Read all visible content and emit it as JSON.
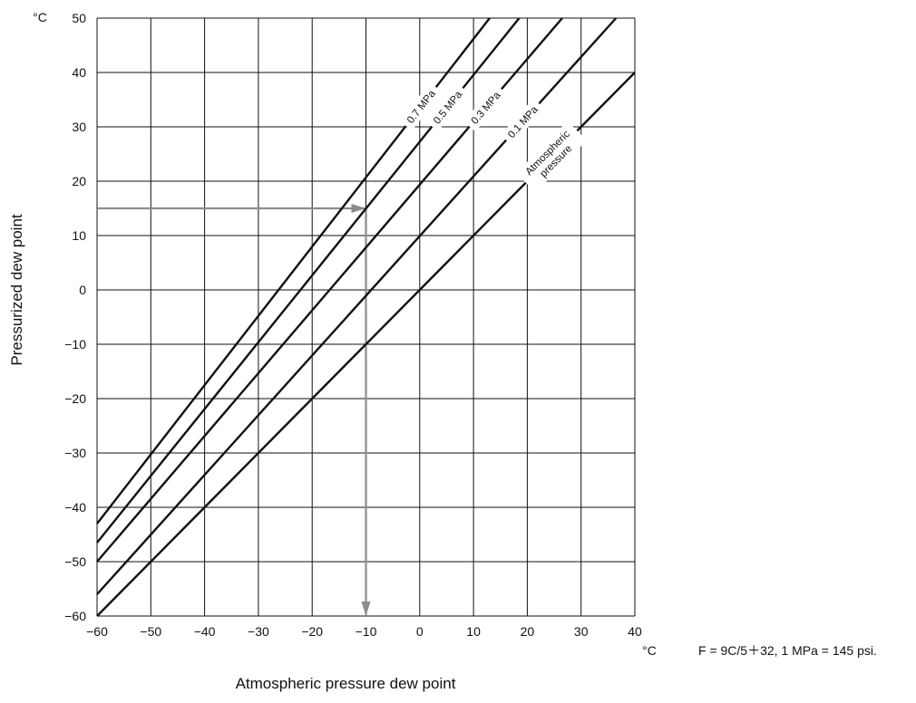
{
  "chart_data": {
    "type": "line",
    "xlabel": "Atmospheric pressure dew point",
    "ylabel": "Pressurized dew point",
    "x_unit": "°C",
    "y_unit": "°C",
    "xlim": [
      -60,
      40
    ],
    "ylim": [
      -60,
      50
    ],
    "x_ticks": [
      "−60",
      "−50",
      "−40",
      "−30",
      "−20",
      "−10",
      "0",
      "10",
      "20",
      "30",
      "40"
    ],
    "y_ticks": [
      "−60",
      "−50",
      "−40",
      "−30",
      "−20",
      "−10",
      "0",
      "10",
      "20",
      "30",
      "40",
      "50"
    ],
    "grid": true,
    "note": "F = 9C/5＋32, 1 MPa = 145 psi.",
    "series": [
      {
        "name": "Atmospheric pressure",
        "label_lines": [
          "Atmospheric",
          "pressure"
        ],
        "x": [
          -60,
          40
        ],
        "y": [
          -60,
          40
        ]
      },
      {
        "name": "0.1 MPa",
        "label_lines": [
          "0.1 MPa"
        ],
        "x": [
          -60,
          36.5
        ],
        "y": [
          -56,
          50
        ]
      },
      {
        "name": "0.3 MPa",
        "label_lines": [
          "0.3 MPa"
        ],
        "x": [
          -60,
          26.5
        ],
        "y": [
          -50,
          50
        ]
      },
      {
        "name": "0.5 MPa",
        "label_lines": [
          "0.5 MPa"
        ],
        "x": [
          -60,
          18.5
        ],
        "y": [
          -46.5,
          50
        ]
      },
      {
        "name": "0.7 MPa",
        "label_lines": [
          "0.7 MPa"
        ],
        "x": [
          -60,
          13
        ],
        "y": [
          -43,
          50
        ]
      }
    ],
    "example_path": {
      "x": [
        -60,
        -10,
        -10
      ],
      "y": [
        15,
        15,
        -60
      ],
      "color": "#8c8c8c"
    },
    "line_color": "#111111",
    "grid_color": "#111111"
  }
}
